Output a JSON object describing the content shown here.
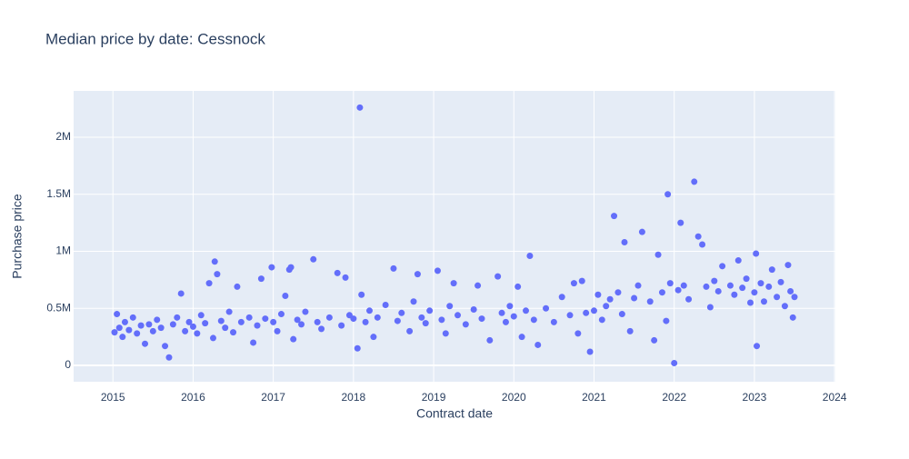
{
  "chart_data": {
    "type": "scatter",
    "title": "Median price by date: Cessnock",
    "x_label": "Contract date",
    "y_label": "Purchase price",
    "color": "#636efa",
    "grid": true,
    "xlim": [
      2014.51,
      2024.01
    ],
    "xticks": [
      2015,
      2016,
      2017,
      2018,
      2019,
      2020,
      2021,
      2022,
      2023,
      2024
    ],
    "ylim": [
      -143000,
      2406000
    ],
    "yticks": [
      0,
      {
        "value": 500000,
        "label": "0.5M"
      },
      {
        "value": 1000000,
        "label": "1M"
      },
      {
        "value": 1500000,
        "label": "1.5M"
      },
      {
        "value": 2000000,
        "label": "2M"
      }
    ],
    "x": [
      2015.02,
      2015.05,
      2015.08,
      2015.12,
      2015.15,
      2015.2,
      2015.25,
      2015.3,
      2015.35,
      2015.4,
      2015.45,
      2015.5,
      2015.55,
      2015.6,
      2015.65,
      2015.7,
      2015.75,
      2015.8,
      2015.85,
      2015.9,
      2015.95,
      2016.0,
      2016.05,
      2016.1,
      2016.15,
      2016.2,
      2016.25,
      2016.27,
      2016.3,
      2016.35,
      2016.4,
      2016.45,
      2016.5,
      2016.55,
      2016.6,
      2016.7,
      2016.75,
      2016.8,
      2016.85,
      2016.9,
      2016.98,
      2017.0,
      2017.05,
      2017.1,
      2017.15,
      2017.2,
      2017.22,
      2017.25,
      2017.3,
      2017.35,
      2017.4,
      2017.5,
      2017.55,
      2017.6,
      2017.7,
      2017.8,
      2017.85,
      2017.9,
      2017.95,
      2018.0,
      2018.05,
      2018.08,
      2018.1,
      2018.15,
      2018.2,
      2018.25,
      2018.3,
      2018.4,
      2018.5,
      2018.55,
      2018.6,
      2018.7,
      2018.75,
      2018.8,
      2018.85,
      2018.9,
      2018.95,
      2019.05,
      2019.1,
      2019.15,
      2019.2,
      2019.25,
      2019.3,
      2019.4,
      2019.5,
      2019.55,
      2019.6,
      2019.7,
      2019.8,
      2019.85,
      2019.9,
      2019.95,
      2020.0,
      2020.05,
      2020.1,
      2020.15,
      2020.2,
      2020.25,
      2020.3,
      2020.4,
      2020.5,
      2020.6,
      2020.7,
      2020.75,
      2020.8,
      2020.85,
      2020.9,
      2020.95,
      2021.0,
      2021.05,
      2021.1,
      2021.15,
      2021.2,
      2021.25,
      2021.3,
      2021.35,
      2021.38,
      2021.45,
      2021.5,
      2021.55,
      2021.6,
      2021.7,
      2021.75,
      2021.8,
      2021.85,
      2021.9,
      2021.92,
      2021.95,
      2022.0,
      2022.05,
      2022.08,
      2022.12,
      2022.18,
      2022.25,
      2022.3,
      2022.35,
      2022.4,
      2022.45,
      2022.5,
      2022.55,
      2022.6,
      2022.7,
      2022.75,
      2022.8,
      2022.85,
      2022.9,
      2022.95,
      2023.0,
      2023.02,
      2023.03,
      2023.08,
      2023.12,
      2023.18,
      2023.22,
      2023.28,
      2023.33,
      2023.38,
      2023.42,
      2023.45,
      2023.48,
      2023.5
    ],
    "values": [
      290000,
      450000,
      330000,
      250000,
      380000,
      310000,
      420000,
      280000,
      350000,
      190000,
      360000,
      300000,
      400000,
      330000,
      170000,
      70000,
      360000,
      420000,
      630000,
      300000,
      380000,
      340000,
      280000,
      440000,
      370000,
      720000,
      240000,
      910000,
      800000,
      390000,
      330000,
      470000,
      290000,
      690000,
      380000,
      420000,
      200000,
      350000,
      760000,
      410000,
      860000,
      380000,
      300000,
      450000,
      610000,
      840000,
      860000,
      230000,
      400000,
      360000,
      470000,
      930000,
      380000,
      320000,
      420000,
      810000,
      350000,
      770000,
      440000,
      410000,
      150000,
      2260000,
      620000,
      380000,
      480000,
      250000,
      420000,
      530000,
      850000,
      390000,
      460000,
      300000,
      560000,
      800000,
      420000,
      370000,
      480000,
      830000,
      400000,
      280000,
      520000,
      720000,
      440000,
      360000,
      490000,
      700000,
      410000,
      220000,
      780000,
      460000,
      380000,
      520000,
      430000,
      690000,
      250000,
      480000,
      960000,
      400000,
      180000,
      500000,
      380000,
      600000,
      440000,
      720000,
      280000,
      740000,
      460000,
      120000,
      480000,
      620000,
      400000,
      520000,
      580000,
      1310000,
      640000,
      450000,
      1080000,
      300000,
      590000,
      700000,
      1170000,
      560000,
      220000,
      970000,
      640000,
      390000,
      1500000,
      720000,
      20000,
      660000,
      1250000,
      700000,
      580000,
      1610000,
      1130000,
      1060000,
      690000,
      510000,
      740000,
      650000,
      870000,
      700000,
      620000,
      920000,
      680000,
      760000,
      550000,
      640000,
      980000,
      170000,
      720000,
      560000,
      690000,
      840000,
      600000,
      730000,
      520000,
      880000,
      650000,
      420000,
      600000
    ]
  }
}
